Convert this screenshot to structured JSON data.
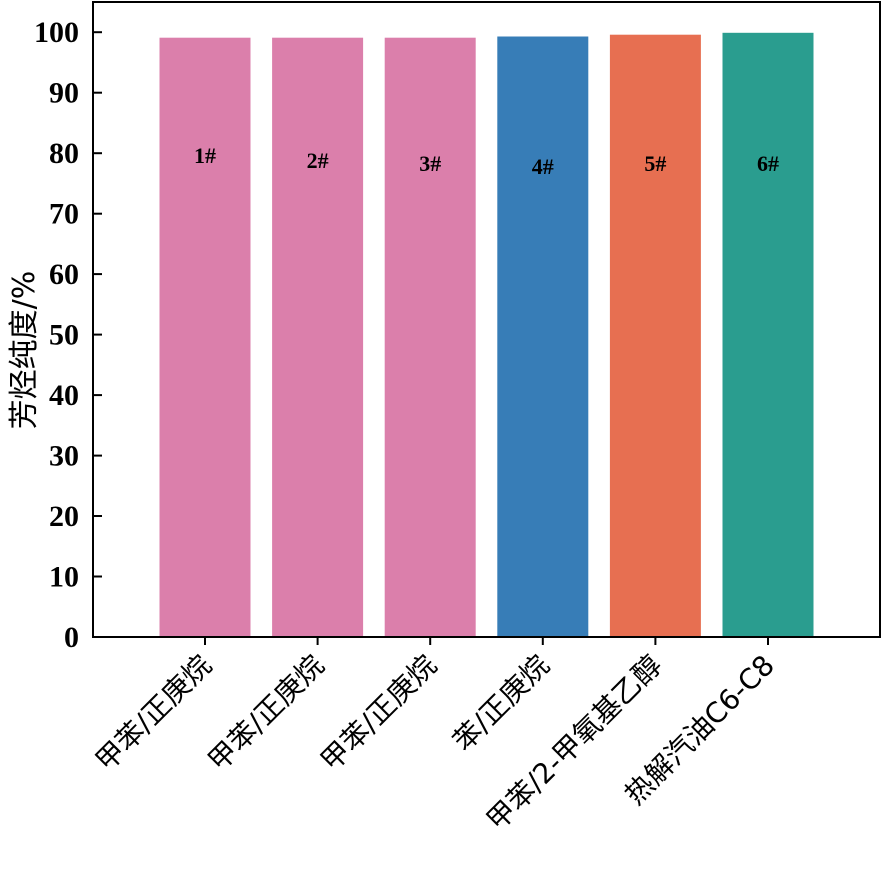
{
  "chart_data": {
    "type": "bar",
    "title": "",
    "xlabel": "",
    "ylabel": "芳烃纯度/%",
    "ylim": [
      0,
      105
    ],
    "yticks": [
      0,
      10,
      20,
      30,
      40,
      50,
      60,
      70,
      80,
      90,
      100
    ],
    "grid": false,
    "categories": [
      "甲苯/正庚烷",
      "甲苯/正庚烷",
      "甲苯/正庚烷",
      "苯/正庚烷",
      "甲苯/2-甲氧基乙醇",
      "热解汽油C6-C8"
    ],
    "values": [
      99.1,
      99.1,
      99.1,
      99.3,
      99.6,
      99.9
    ],
    "bar_labels": [
      "1#",
      "2#",
      "3#",
      "4#",
      "5#",
      "6#"
    ],
    "colors": [
      "#db7fab",
      "#db7fab",
      "#db7fab",
      "#377db7",
      "#e76f51",
      "#2a9d8f"
    ]
  }
}
